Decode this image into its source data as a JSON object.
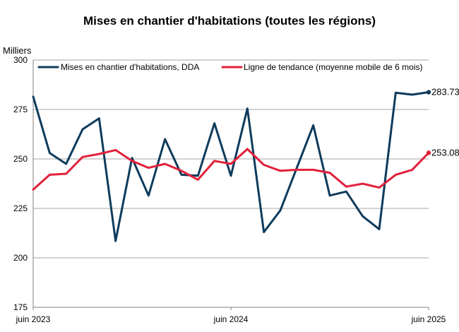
{
  "chart_data": {
    "type": "line",
    "title": "Mises en chantier d'habitations (toutes les régions)",
    "ylabel": "Milliers",
    "ylim": [
      175,
      300
    ],
    "yticks": [
      175,
      200,
      225,
      250,
      275,
      300
    ],
    "grid": true,
    "legend_position": "top",
    "x": [
      "2023-06",
      "2023-07",
      "2023-08",
      "2023-09",
      "2023-10",
      "2023-11",
      "2023-12",
      "2024-01",
      "2024-02",
      "2024-03",
      "2024-04",
      "2024-05",
      "2024-06",
      "2024-07",
      "2024-08",
      "2024-09",
      "2024-10",
      "2024-11",
      "2024-12",
      "2025-01",
      "2025-02",
      "2025-03",
      "2025-04",
      "2025-05",
      "2025-06"
    ],
    "xtick_labels": [
      {
        "x": "2023-06",
        "label": "juin 2023"
      },
      {
        "x": "2024-06",
        "label": "juin 2024"
      },
      {
        "x": "2025-06",
        "label": "juin 2025"
      }
    ],
    "series": [
      {
        "name": "Mises en chantier d'habitations, DDA",
        "color": "#0e3b5c",
        "values": [
          281.5,
          253,
          247.5,
          265,
          270.5,
          208.5,
          250.5,
          231.5,
          260,
          242,
          241.5,
          268,
          241.5,
          275.5,
          213,
          224,
          245.5,
          267,
          231.5,
          233.5,
          221,
          214.5,
          283.5,
          282.5,
          283.734
        ],
        "end_label": "283.734"
      },
      {
        "name": "Ligne de tendance (moyenne mobile de 6 mois)",
        "color": "#e2203a",
        "values": [
          234.5,
          242,
          242.5,
          251,
          252.5,
          254.5,
          249,
          245.5,
          247.5,
          244,
          239.5,
          249,
          247.5,
          255,
          247,
          244,
          244.5,
          244.5,
          243,
          236,
          237.5,
          235.5,
          242,
          244.5,
          253.081
        ],
        "end_label": "253.081"
      }
    ]
  }
}
